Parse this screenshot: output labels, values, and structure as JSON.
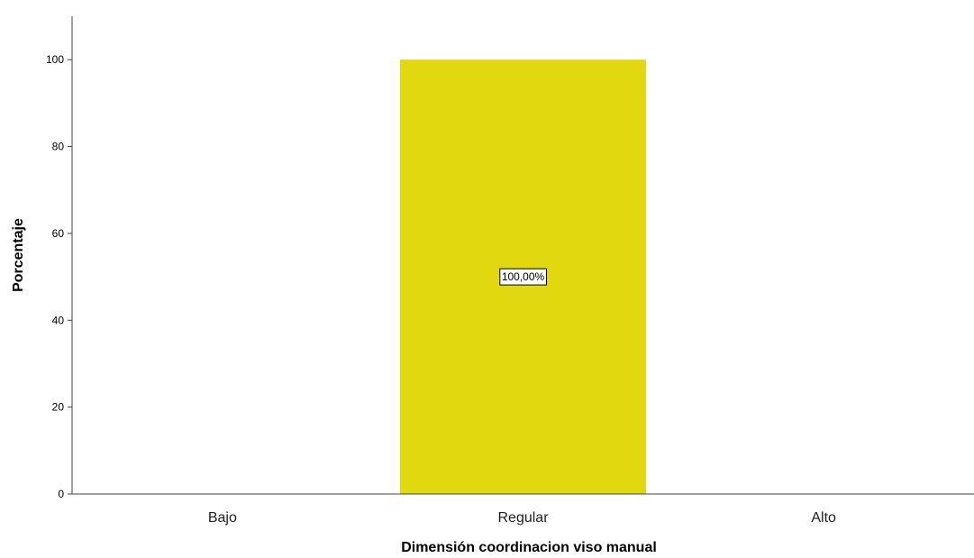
{
  "chart_data": {
    "type": "bar",
    "categories": [
      "Bajo",
      "Regular",
      "Alto"
    ],
    "values": [
      0,
      100,
      0
    ],
    "data_labels": [
      "",
      "100,00%",
      ""
    ],
    "xlabel": "Dimensión coordinacion viso manual",
    "ylabel": "Porcentaje",
    "ylim": [
      0,
      110
    ],
    "yticks": [
      0,
      20,
      40,
      60,
      80,
      100
    ],
    "ytick_labels": [
      "0",
      "20",
      "40",
      "60",
      "80",
      "100"
    ],
    "grid": false,
    "legend": "none",
    "colors": {
      "bar": "#e1d80f",
      "axis": "#444444",
      "text": "#000000"
    }
  }
}
